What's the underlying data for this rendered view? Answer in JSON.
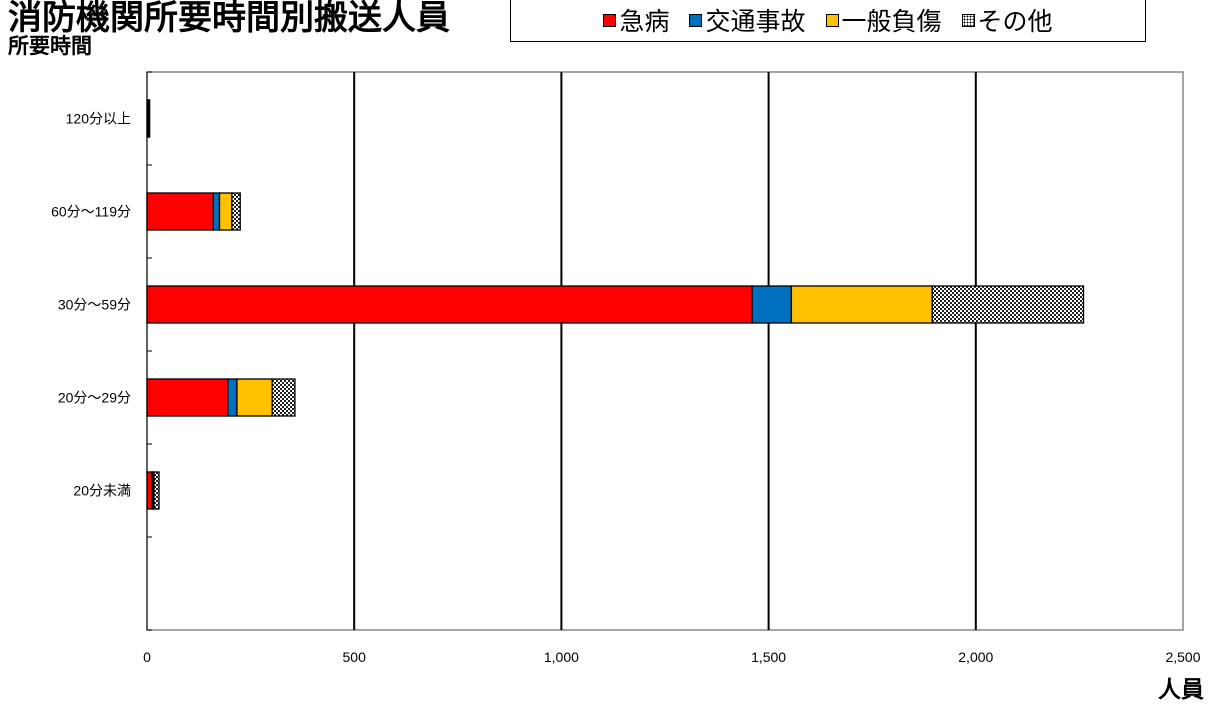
{
  "header": {
    "title": "消防機関所要時間別搬送人員",
    "ylabel": "所要時間",
    "xlabel": "人員"
  },
  "chart_data": {
    "type": "bar",
    "orientation": "horizontal",
    "stacked": true,
    "categories": [
      "120分以上",
      "60分～119分",
      "30分～59分",
      "20分～29分",
      "20分未満"
    ],
    "series": [
      {
        "name": "急病",
        "color": "#ff0000",
        "pattern": "solid",
        "values": [
          3,
          160,
          1460,
          195,
          12
        ]
      },
      {
        "name": "交通事故",
        "color": "#0070c0",
        "pattern": "solid",
        "values": [
          0,
          15,
          95,
          22,
          2
        ]
      },
      {
        "name": "一般負傷",
        "color": "#ffc000",
        "pattern": "solid",
        "values": [
          1,
          30,
          340,
          85,
          3
        ]
      },
      {
        "name": "その他",
        "color": "#333333",
        "pattern": "dots",
        "values": [
          1,
          20,
          365,
          55,
          12
        ]
      }
    ],
    "xlim": [
      0,
      2500
    ],
    "xticks": [
      0,
      500,
      1000,
      1500,
      2000,
      2500
    ],
    "xtick_labels": [
      "0",
      "500",
      "1,000",
      "1,500",
      "2,000",
      "2,500"
    ],
    "grid": "vertical",
    "legend": "top"
  }
}
